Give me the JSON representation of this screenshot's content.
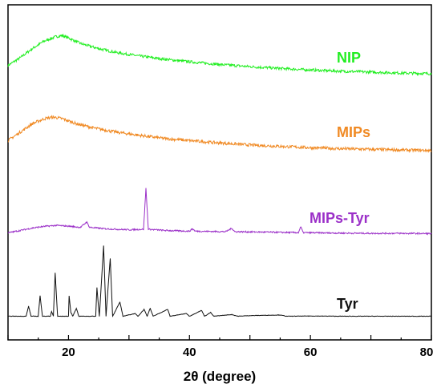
{
  "chart_data": {
    "type": "line",
    "xlabel": "2θ (degree)",
    "ylabel": "",
    "xlim": [
      10,
      80
    ],
    "x_ticks": [
      20,
      40,
      60,
      80
    ],
    "y_ticks": [],
    "grid": false,
    "legend": "inline labels at right",
    "offset_stacked": true,
    "series": [
      {
        "name": "NIP",
        "color": "#22ee22",
        "points": [
          [
            10,
            0.3
          ],
          [
            12,
            0.55
          ],
          [
            14,
            0.85
          ],
          [
            16,
            1.1
          ],
          [
            18,
            1.25
          ],
          [
            19,
            1.28
          ],
          [
            20,
            1.2
          ],
          [
            22,
            1.02
          ],
          [
            25,
            0.85
          ],
          [
            28,
            0.72
          ],
          [
            32,
            0.6
          ],
          [
            36,
            0.5
          ],
          [
            40,
            0.42
          ],
          [
            45,
            0.33
          ],
          [
            50,
            0.26
          ],
          [
            55,
            0.2
          ],
          [
            60,
            0.15
          ],
          [
            65,
            0.11
          ],
          [
            70,
            0.08
          ],
          [
            75,
            0.05
          ],
          [
            80,
            0.03
          ]
        ]
      },
      {
        "name": "MIPs",
        "color": "#f08a24",
        "points": [
          [
            10,
            0.3
          ],
          [
            12,
            0.55
          ],
          [
            14,
            0.8
          ],
          [
            16,
            0.95
          ],
          [
            17.5,
            1.0
          ],
          [
            19,
            0.95
          ],
          [
            21,
            0.82
          ],
          [
            24,
            0.68
          ],
          [
            28,
            0.55
          ],
          [
            32,
            0.45
          ],
          [
            36,
            0.36
          ],
          [
            40,
            0.3
          ],
          [
            45,
            0.23
          ],
          [
            50,
            0.17
          ],
          [
            55,
            0.13
          ],
          [
            60,
            0.09
          ],
          [
            65,
            0.06
          ],
          [
            70,
            0.04
          ],
          [
            75,
            0.02
          ],
          [
            80,
            0.01
          ]
        ]
      },
      {
        "name": "MIPs-Tyr",
        "color": "#9b30c8",
        "points": [
          [
            10,
            0.05
          ],
          [
            12,
            0.15
          ],
          [
            14,
            0.25
          ],
          [
            16,
            0.32
          ],
          [
            18,
            0.36
          ],
          [
            20,
            0.33
          ],
          [
            22,
            0.28
          ],
          [
            23,
            0.5
          ],
          [
            23.5,
            0.28
          ],
          [
            26,
            0.22
          ],
          [
            30,
            0.18
          ],
          [
            32.4,
            0.2
          ],
          [
            32.8,
            1.9
          ],
          [
            33.2,
            0.2
          ],
          [
            36,
            0.15
          ],
          [
            40,
            0.12
          ],
          [
            40.5,
            0.22
          ],
          [
            41,
            0.12
          ],
          [
            46,
            0.1
          ],
          [
            47,
            0.24
          ],
          [
            47.5,
            0.1
          ],
          [
            53,
            0.08
          ],
          [
            58,
            0.06
          ],
          [
            58.4,
            0.3
          ],
          [
            58.8,
            0.06
          ],
          [
            65,
            0.04
          ],
          [
            70,
            0.03
          ],
          [
            75,
            0.03
          ],
          [
            80,
            0.02
          ]
        ]
      },
      {
        "name": "Tyr",
        "color": "#111111",
        "points": [
          [
            10,
            0.02
          ],
          [
            13,
            0.02
          ],
          [
            13.4,
            0.5
          ],
          [
            13.8,
            0.02
          ],
          [
            15,
            0.02
          ],
          [
            15.3,
            1.0
          ],
          [
            15.7,
            0.02
          ],
          [
            17,
            0.02
          ],
          [
            17.2,
            0.25
          ],
          [
            17.5,
            0.02
          ],
          [
            17.8,
            2.1
          ],
          [
            18.2,
            0.02
          ],
          [
            20,
            0.02
          ],
          [
            20.1,
            1.0
          ],
          [
            20.4,
            0.2
          ],
          [
            20.7,
            0.02
          ],
          [
            21.3,
            0.4
          ],
          [
            21.7,
            0.02
          ],
          [
            24.5,
            0.02
          ],
          [
            24.7,
            1.4
          ],
          [
            25.1,
            0.02
          ],
          [
            25.8,
            3.4
          ],
          [
            26.2,
            0.02
          ],
          [
            26.9,
            2.8
          ],
          [
            27.3,
            0.02
          ],
          [
            28.5,
            0.7
          ],
          [
            29,
            0.02
          ],
          [
            31,
            0.15
          ],
          [
            31.5,
            0.02
          ],
          [
            32.5,
            0.35
          ],
          [
            33,
            0.02
          ],
          [
            33.5,
            0.4
          ],
          [
            34,
            0.02
          ],
          [
            36.4,
            0.35
          ],
          [
            36.8,
            0.02
          ],
          [
            39.5,
            0.15
          ],
          [
            40,
            0.02
          ],
          [
            42,
            0.3
          ],
          [
            42.5,
            0.02
          ],
          [
            43.5,
            0.2
          ],
          [
            44,
            0.02
          ],
          [
            47,
            0.1
          ],
          [
            48,
            0.02
          ],
          [
            50,
            0.05
          ],
          [
            55,
            0.08
          ],
          [
            56,
            0.02
          ],
          [
            60,
            0.03
          ],
          [
            65,
            0.02
          ],
          [
            70,
            0.02
          ],
          [
            75,
            0.02
          ],
          [
            80,
            0.02
          ]
        ]
      }
    ]
  }
}
